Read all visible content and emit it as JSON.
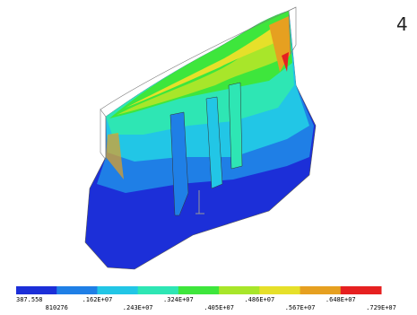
{
  "window_number": "4",
  "legend": {
    "labels": [
      "387.558",
      "810276",
      ".162E+07",
      ".243E+07",
      ".324E+07",
      ".405E+07",
      ".486E+07",
      ".567E+07",
      ".648E+07",
      ".729E+07"
    ],
    "colors": [
      "#1c2fd8",
      "#1f7fe6",
      "#22c6e6",
      "#2ee6b4",
      "#3ee63c",
      "#a8e62a",
      "#e6e02a",
      "#e6a020",
      "#e62020"
    ]
  }
}
